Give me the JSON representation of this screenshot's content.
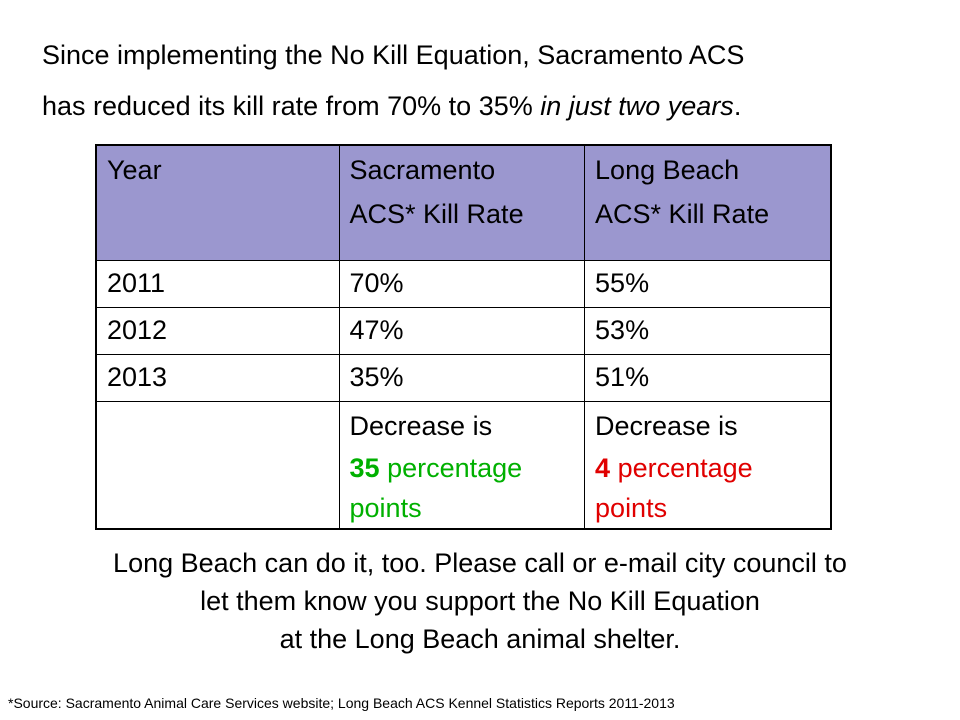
{
  "intro": {
    "line1": "Since implementing the No Kill Equation, Sacramento ACS",
    "line2_plain": "has reduced its kill rate from 70% to 35% ",
    "line2_italic": "in just two years",
    "line2_end": "."
  },
  "table": {
    "headers": {
      "year": "Year",
      "sacramento_line1": "Sacramento",
      "sacramento_line2": "ACS* Kill Rate",
      "longbeach_line1": "Long Beach",
      "longbeach_line2": "ACS* Kill Rate"
    },
    "rows": [
      {
        "year": "2011",
        "sacramento": "70%",
        "longbeach": "55%"
      },
      {
        "year": "2012",
        "sacramento": "47%",
        "longbeach": "53%"
      },
      {
        "year": "2013",
        "sacramento": "35%",
        "longbeach": "51%"
      }
    ],
    "summary": {
      "sacramento_label": "Decrease is",
      "sacramento_number": "35",
      "sacramento_rest": " percentage",
      "sacramento_points": "points",
      "longbeach_label": "Decrease is",
      "longbeach_number": "4",
      "longbeach_rest": " percentage",
      "longbeach_points": "points"
    }
  },
  "call_to_action": {
    "line1": "Long Beach can do it, too. Please call or e-mail city council to",
    "line2": "let them know you support the No Kill Equation",
    "line3": "at the Long Beach animal shelter."
  },
  "source": "*Source: Sacramento Animal Care Services website; Long Beach ACS Kennel Statistics Reports 2011-2013",
  "colors": {
    "header_background": "#9b97cf",
    "sacramento_decrease": "#00b000",
    "longbeach_decrease": "#e00000"
  }
}
